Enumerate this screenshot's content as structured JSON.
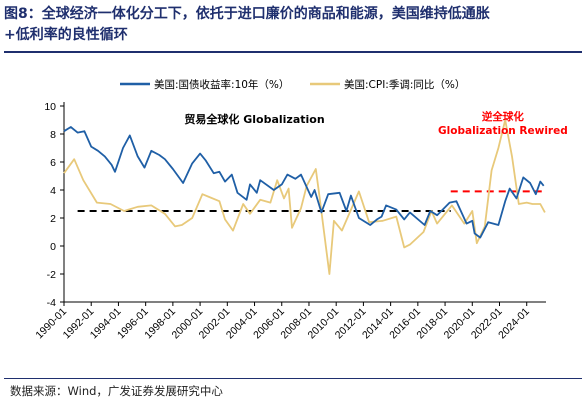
{
  "figure": {
    "title_line1": "图8：全球经济一体化分工下，依托于进口廉价的商品和能源，美国维持低通胀",
    "title_line2": "+低利率的良性循环",
    "source": "数据来源：Wind，广发证券发展研究中心"
  },
  "colors": {
    "title": "#1f2f6e",
    "treasury_line": "#1f5fa6",
    "cpi_line": "#e8c97a",
    "dashed_black": "#000000",
    "dashed_red": "#ff0000",
    "annotation_red": "#ff0000"
  },
  "chart_data": {
    "type": "line",
    "xlabel": "",
    "ylabel": "",
    "ylim": [
      -4,
      10
    ],
    "yticks": [
      -4,
      -2,
      0,
      2,
      4,
      6,
      8,
      10
    ],
    "xlim": [
      "1990-01",
      "2025-06"
    ],
    "xticks": [
      "1990-01",
      "1992-01",
      "1994-01",
      "1996-01",
      "1998-01",
      "2000-01",
      "2002-01",
      "2004-01",
      "2006-01",
      "2008-01",
      "2010-01",
      "2012-01",
      "2014-01",
      "2016-01",
      "2018-01",
      "2020-01",
      "2022-01",
      "2024-01"
    ],
    "grid": false,
    "legend_position": "top",
    "series": [
      {
        "name": "美国:国债收益率:10年（%）",
        "style": "solid",
        "x": [
          "1990-01",
          "1990-07",
          "1991-01",
          "1991-07",
          "1992-01",
          "1992-07",
          "1993-01",
          "1993-07",
          "1993-10",
          "1994-05",
          "1994-11",
          "1995-06",
          "1995-12",
          "1996-06",
          "1997-01",
          "1997-06",
          "1998-01",
          "1998-10",
          "1999-06",
          "2000-01",
          "2000-06",
          "2001-01",
          "2001-06",
          "2001-11",
          "2002-05",
          "2002-10",
          "2003-06",
          "2003-09",
          "2004-03",
          "2004-06",
          "2005-06",
          "2006-01",
          "2006-06",
          "2007-01",
          "2007-06",
          "2008-03",
          "2008-06",
          "2008-12",
          "2009-06",
          "2010-04",
          "2010-10",
          "2011-02",
          "2011-09",
          "2012-07",
          "2013-01",
          "2013-05",
          "2013-09",
          "2014-06",
          "2015-01",
          "2015-06",
          "2016-07",
          "2016-12",
          "2017-06",
          "2018-05",
          "2018-11",
          "2019-08",
          "2020-01",
          "2020-03",
          "2020-08",
          "2021-03",
          "2021-12",
          "2022-06",
          "2022-10",
          "2023-04",
          "2023-10",
          "2024-04",
          "2024-09",
          "2025-01",
          "2025-04"
        ],
        "y": [
          8.2,
          8.5,
          8.1,
          8.2,
          7.1,
          6.8,
          6.4,
          5.8,
          5.3,
          7.0,
          7.9,
          6.4,
          5.6,
          6.8,
          6.5,
          6.2,
          5.5,
          4.5,
          5.9,
          6.6,
          6.1,
          5.2,
          5.3,
          4.6,
          5.1,
          3.8,
          3.3,
          4.4,
          3.8,
          4.7,
          4.0,
          4.4,
          5.1,
          4.8,
          5.1,
          3.5,
          4.0,
          2.4,
          3.7,
          3.8,
          2.5,
          3.6,
          2.0,
          1.5,
          1.9,
          2.1,
          2.9,
          2.6,
          1.9,
          2.4,
          1.5,
          2.5,
          2.2,
          3.1,
          3.2,
          1.6,
          1.8,
          0.9,
          0.6,
          1.7,
          1.5,
          3.2,
          4.1,
          3.4,
          4.9,
          4.5,
          3.7,
          4.6,
          4.3
        ]
      },
      {
        "name": "美国:CPI:季调:同比（%）",
        "style": "solid",
        "x": [
          "1990-01",
          "1990-10",
          "1991-06",
          "1992-06",
          "1993-06",
          "1994-06",
          "1995-06",
          "1996-06",
          "1997-06",
          "1998-03",
          "1998-09",
          "1999-06",
          "2000-03",
          "2000-09",
          "2001-06",
          "2001-11",
          "2002-06",
          "2003-03",
          "2003-09",
          "2004-06",
          "2005-03",
          "2005-09",
          "2006-03",
          "2006-07",
          "2006-10",
          "2007-06",
          "2007-11",
          "2008-07",
          "2008-10",
          "2009-07",
          "2009-11",
          "2010-06",
          "2011-09",
          "2012-06",
          "2013-06",
          "2014-06",
          "2015-01",
          "2015-06",
          "2016-06",
          "2017-01",
          "2017-06",
          "2018-07",
          "2019-06",
          "2020-01",
          "2020-05",
          "2020-12",
          "2021-06",
          "2021-12",
          "2022-06",
          "2022-12",
          "2023-06",
          "2024-01",
          "2024-06",
          "2025-01",
          "2025-05"
        ],
        "y": [
          5.2,
          6.2,
          4.7,
          3.1,
          3.0,
          2.5,
          2.8,
          2.9,
          2.3,
          1.4,
          1.5,
          2.0,
          3.7,
          3.5,
          3.2,
          1.9,
          1.1,
          3.0,
          2.3,
          3.3,
          3.1,
          4.7,
          3.4,
          4.1,
          1.3,
          2.7,
          4.3,
          5.5,
          3.7,
          -2.0,
          1.8,
          1.1,
          3.9,
          1.7,
          1.8,
          2.1,
          -0.1,
          0.1,
          1.0,
          2.5,
          1.6,
          2.9,
          1.6,
          2.5,
          0.2,
          1.4,
          5.4,
          7.0,
          9.0,
          6.4,
          3.0,
          3.1,
          3.0,
          3.0,
          2.4
        ]
      }
    ],
    "reference_lines": [
      {
        "style": "dashed",
        "color": "black",
        "x_start": "1991-01",
        "x_end": "2018-06",
        "y": 2.5
      },
      {
        "style": "dashed",
        "color": "red",
        "x_start": "2018-06",
        "x_end": "2025-06",
        "y": 3.9
      }
    ],
    "annotations": [
      {
        "text": "贸易全球化 Globalization",
        "color": "black",
        "near_x": "2004-01",
        "near_y": 8.8
      },
      {
        "text_line1": "逆全球化",
        "text_line2": "Globalization Rewired",
        "color": "red",
        "near_x": "2022-04",
        "near_y": 9.0
      }
    ]
  }
}
